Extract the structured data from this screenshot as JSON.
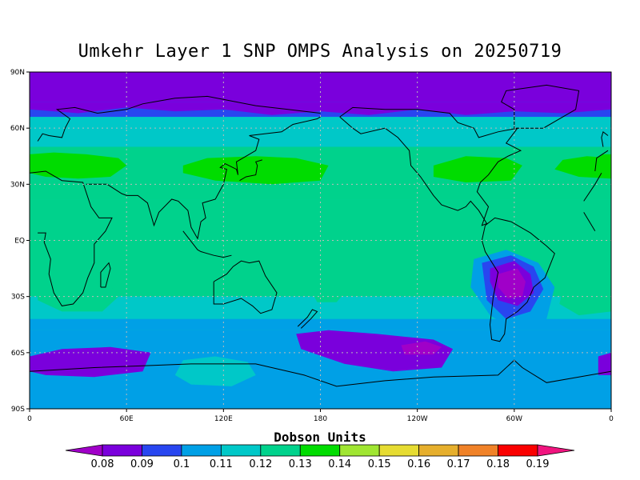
{
  "map": {
    "title": "Umkehr Layer 1 SNP OMPS Analysis on 20250719",
    "projection": "equirectangular",
    "lon_range": [
      0,
      360
    ],
    "lat_range": [
      -90,
      90
    ],
    "lat_ticks": [
      "90N",
      "60N",
      "30N",
      "EQ",
      "30S",
      "60S",
      "90S"
    ],
    "lon_ticks": [
      "0",
      "60E",
      "120E",
      "180",
      "120W",
      "60W",
      "0"
    ],
    "grid": true,
    "ocean_zones": [
      {
        "name": "north-polar-cap",
        "value": 0.08
      },
      {
        "name": "northern-high-latitudes",
        "value": 0.1
      },
      {
        "name": "northern-mid-latitude-band",
        "value": 0.13
      },
      {
        "name": "tropics",
        "value": 0.12
      },
      {
        "name": "southern-mid-latitudes",
        "value": 0.1
      },
      {
        "name": "southern-high-latitudes",
        "value": 0.08
      },
      {
        "name": "south-america-low",
        "value": 0.08
      }
    ]
  },
  "colorbar": {
    "title": "Dobson Units",
    "labels": [
      "0.08",
      "0.09",
      "0.1",
      "0.11",
      "0.12",
      "0.13",
      "0.14",
      "0.15",
      "0.16",
      "0.17",
      "0.18",
      "0.19"
    ],
    "colors": [
      "#a000c8",
      "#7a00dc",
      "#2846f0",
      "#00a0e6",
      "#00c8c8",
      "#00d28c",
      "#00dc00",
      "#a0e632",
      "#e6dc32",
      "#e6af2d",
      "#f08228",
      "#fa0000",
      "#f0147f"
    ]
  }
}
